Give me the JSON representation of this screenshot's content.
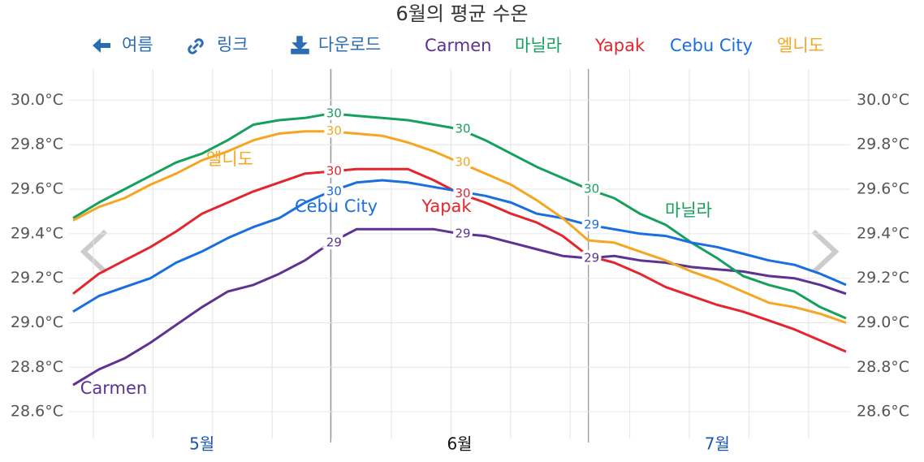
{
  "toolbar": [
    "여름",
    "링크",
    "다운로드"
  ],
  "chart_data": {
    "type": "line",
    "title": "6월의 평균 수온",
    "categories": [
      null,
      null,
      null,
      null,
      null,
      "5월",
      null,
      null,
      null,
      null,
      null,
      null,
      null,
      null,
      null,
      "6월",
      null,
      null,
      null,
      null,
      null,
      null,
      null,
      null,
      null,
      "7월",
      null,
      null,
      null,
      null,
      null
    ],
    "ylim": [
      28.48,
      30.14
    ],
    "yticks": [
      {
        "value": 28.6,
        "label": "28.6°C"
      },
      {
        "value": 28.8,
        "label": "28.8°C"
      },
      {
        "value": 29.0,
        "label": "29.0°C"
      },
      {
        "value": 29.2,
        "label": "29.2°C"
      },
      {
        "value": 29.4,
        "label": "29.4°C"
      },
      {
        "value": 29.6,
        "label": "29.6°C"
      },
      {
        "value": 29.8,
        "label": "29.8°C"
      },
      {
        "value": 30.0,
        "label": "30.0°C"
      }
    ],
    "grid": true,
    "series": [
      {
        "name": "Carmen",
        "color": "#5c3292",
        "values": [
          28.72,
          28.79,
          28.84,
          28.91,
          28.99,
          29.07,
          29.14,
          29.17,
          29.22,
          29.28,
          29.36,
          29.42,
          29.42,
          29.42,
          29.42,
          29.4,
          29.39,
          29.36,
          29.33,
          29.3,
          29.29,
          29.3,
          29.28,
          29.27,
          29.25,
          29.24,
          29.23,
          29.21,
          29.2,
          29.17,
          29.13
        ],
        "value_labels": [
          null,
          null,
          null,
          null,
          null,
          null,
          null,
          null,
          null,
          null,
          "29",
          null,
          null,
          null,
          null,
          "29",
          null,
          null,
          null,
          null,
          "29",
          null,
          null,
          null,
          null,
          null,
          null,
          null,
          null,
          null,
          null
        ]
      },
      {
        "name": "마닐라",
        "color": "#16a05d",
        "values": [
          29.47,
          29.54,
          29.6,
          29.66,
          29.72,
          29.76,
          29.82,
          29.89,
          29.91,
          29.92,
          29.94,
          29.93,
          29.92,
          29.91,
          29.89,
          29.87,
          29.82,
          29.76,
          29.7,
          29.65,
          29.6,
          29.56,
          29.49,
          29.44,
          29.36,
          29.29,
          29.21,
          29.17,
          29.14,
          29.07,
          29.02
        ],
        "value_labels": [
          null,
          null,
          null,
          null,
          null,
          null,
          null,
          null,
          null,
          null,
          "30",
          null,
          null,
          null,
          null,
          "30",
          null,
          null,
          null,
          null,
          "30",
          null,
          null,
          null,
          null,
          null,
          null,
          null,
          null,
          null,
          null
        ]
      },
      {
        "name": "Yapak",
        "color": "#e3262e",
        "values": [
          29.13,
          29.22,
          29.28,
          29.34,
          29.41,
          29.49,
          29.54,
          29.59,
          29.63,
          29.67,
          29.68,
          29.69,
          29.69,
          29.69,
          29.64,
          29.58,
          29.54,
          29.49,
          29.45,
          29.39,
          29.3,
          29.27,
          29.22,
          29.16,
          29.12,
          29.08,
          29.05,
          29.01,
          28.97,
          28.92,
          28.87
        ],
        "value_labels": [
          null,
          null,
          null,
          null,
          null,
          null,
          null,
          null,
          null,
          null,
          "30",
          null,
          null,
          null,
          null,
          "30",
          null,
          null,
          null,
          null,
          null,
          null,
          null,
          null,
          null,
          null,
          null,
          null,
          null,
          null,
          null
        ]
      },
      {
        "name": "Cebu City",
        "color": "#1a6fe0",
        "values": [
          29.05,
          29.12,
          29.16,
          29.2,
          29.27,
          29.32,
          29.38,
          29.43,
          29.47,
          29.54,
          29.59,
          29.63,
          29.64,
          29.63,
          29.61,
          29.59,
          29.57,
          29.54,
          29.49,
          29.47,
          29.44,
          29.42,
          29.4,
          29.39,
          29.36,
          29.34,
          29.31,
          29.28,
          29.26,
          29.22,
          29.17
        ],
        "value_labels": [
          null,
          null,
          null,
          null,
          null,
          null,
          null,
          null,
          null,
          null,
          "30",
          null,
          null,
          null,
          null,
          null,
          null,
          null,
          null,
          null,
          "29",
          null,
          null,
          null,
          null,
          null,
          null,
          null,
          null,
          null,
          null
        ]
      },
      {
        "name": "엘니도",
        "color": "#f5a623",
        "values": [
          29.46,
          29.52,
          29.56,
          29.62,
          29.67,
          29.73,
          29.77,
          29.82,
          29.85,
          29.86,
          29.86,
          29.85,
          29.84,
          29.81,
          29.77,
          29.72,
          29.67,
          29.62,
          29.55,
          29.47,
          29.37,
          29.36,
          29.32,
          29.28,
          29.23,
          29.19,
          29.14,
          29.09,
          29.07,
          29.04,
          29.0
        ],
        "value_labels": [
          null,
          null,
          null,
          null,
          null,
          null,
          null,
          null,
          null,
          null,
          "30",
          null,
          null,
          null,
          null,
          "30",
          null,
          null,
          null,
          null,
          null,
          null,
          null,
          null,
          null,
          null,
          null,
          null,
          null,
          null,
          null
        ]
      }
    ]
  }
}
